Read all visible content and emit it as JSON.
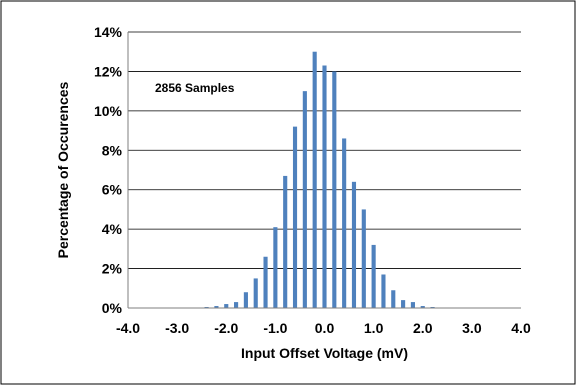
{
  "chart_data": {
    "type": "bar",
    "title": "",
    "annotation": "2856 Samples",
    "xlabel": "Input Offset Voltage (mV)",
    "ylabel": "Percentage of Occurences",
    "xlim": [
      -4.0,
      4.0
    ],
    "ylim": [
      0,
      14
    ],
    "x_ticks": [
      "-4.0",
      "-3.0",
      "-2.0",
      "-1.0",
      "0.0",
      "1.0",
      "2.0",
      "3.0",
      "4.0"
    ],
    "y_ticks": [
      "0%",
      "2%",
      "4%",
      "6%",
      "8%",
      "10%",
      "12%",
      "14%"
    ],
    "grid": "horizontal",
    "legend": "none",
    "bar_color": "#4F81BD",
    "x": [
      -2.4,
      -2.2,
      -2.0,
      -1.8,
      -1.6,
      -1.4,
      -1.2,
      -1.0,
      -0.8,
      -0.6,
      -0.4,
      -0.2,
      0.0,
      0.2,
      0.4,
      0.6,
      0.8,
      1.0,
      1.2,
      1.4,
      1.6,
      1.8,
      2.0,
      2.2
    ],
    "values": [
      0.05,
      0.1,
      0.2,
      0.3,
      0.8,
      1.5,
      2.6,
      4.1,
      6.7,
      9.2,
      11.0,
      13.0,
      12.3,
      12.0,
      8.6,
      6.4,
      5.0,
      3.2,
      1.7,
      0.9,
      0.4,
      0.3,
      0.1,
      0.05
    ]
  }
}
